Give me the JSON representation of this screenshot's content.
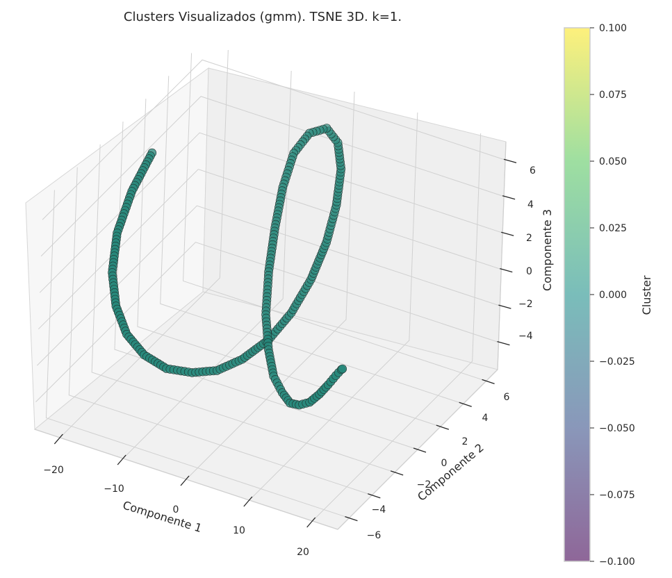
{
  "chart_data": {
    "type": "scatter",
    "projection": "3d",
    "title": "Clusters Visualizados (gmm). TSNE 3D. k=1.",
    "xlabel": "Componente 1",
    "ylabel": "Componente 2",
    "zlabel": "Componente 3",
    "x_ticks": [
      "−20",
      "−10",
      "0",
      "10",
      "20"
    ],
    "y_ticks": [
      "−6",
      "−4",
      "−2",
      "0",
      "2",
      "4",
      "6"
    ],
    "z_ticks": [
      "−4",
      "−2",
      "0",
      "2",
      "4",
      "6"
    ],
    "xlim": [
      -24,
      24
    ],
    "ylim": [
      -7,
      7
    ],
    "zlim": [
      -5.5,
      7
    ],
    "grid": true,
    "point_color": "#26877a",
    "point_edge_color": "#1f2d2a",
    "series": [
      {
        "cluster": 0,
        "shape": "helical spiral",
        "points": [
          [
            -21.0,
            1.0,
            5.0
          ],
          [
            -20.5,
            -1.0,
            4.2
          ],
          [
            -19.8,
            -2.6,
            3.0
          ],
          [
            -18.8,
            -3.5,
            1.5
          ],
          [
            -17.5,
            -3.8,
            0.0
          ],
          [
            -16.0,
            -3.6,
            -1.5
          ],
          [
            -14.2,
            -3.0,
            -2.8
          ],
          [
            -12.0,
            -2.2,
            -3.8
          ],
          [
            -9.5,
            -1.3,
            -4.3
          ],
          [
            -7.0,
            -0.5,
            -4.4
          ],
          [
            -4.5,
            0.3,
            -4.0
          ],
          [
            -2.0,
            1.2,
            -3.2
          ],
          [
            0.0,
            2.0,
            -2.0
          ],
          [
            1.5,
            2.8,
            -0.5
          ],
          [
            2.5,
            3.5,
            1.2
          ],
          [
            3.0,
            4.0,
            3.0
          ],
          [
            3.0,
            4.3,
            4.8
          ],
          [
            2.0,
            4.5,
            6.0
          ],
          [
            0.0,
            4.6,
            6.5
          ],
          [
            -2.5,
            4.5,
            6.0
          ],
          [
            -4.5,
            4.3,
            4.8
          ],
          [
            -5.5,
            4.0,
            3.0
          ],
          [
            -5.8,
            3.6,
            1.0
          ],
          [
            -5.5,
            3.0,
            -1.0
          ],
          [
            -4.5,
            2.3,
            -2.8
          ],
          [
            -2.5,
            1.5,
            -4.0
          ],
          [
            0.0,
            0.6,
            -4.6
          ],
          [
            3.0,
            -0.3,
            -4.6
          ],
          [
            6.0,
            -1.3,
            -4.2
          ],
          [
            9.0,
            -2.2,
            -3.4
          ],
          [
            12.0,
            -3.0,
            -2.4
          ],
          [
            14.5,
            -3.6,
            -1.3
          ],
          [
            16.5,
            -4.0,
            -0.3
          ],
          [
            18.0,
            -4.2,
            0.5
          ],
          [
            19.0,
            -4.3,
            1.0
          ],
          [
            19.5,
            -4.4,
            1.2
          ]
        ]
      }
    ],
    "colorbar": {
      "label": "Cluster",
      "ticks": [
        "0.100",
        "0.075",
        "0.050",
        "0.025",
        "0.000",
        "−0.025",
        "−0.050",
        "−0.075",
        "−0.100"
      ],
      "range": [
        -0.1,
        0.1
      ],
      "colormap": "viridis",
      "alpha": 0.6,
      "colors": [
        "#440154",
        "#3b528b",
        "#21918c",
        "#5ec962",
        "#fde725"
      ]
    }
  }
}
